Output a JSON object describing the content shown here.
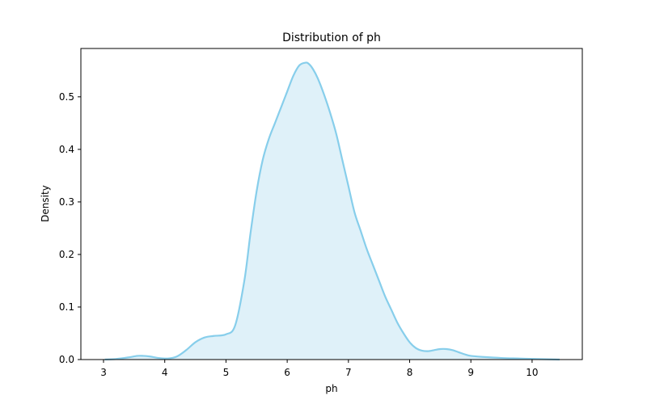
{
  "chart_data": {
    "type": "area",
    "title": "Distribution of ph",
    "xlabel": "ph",
    "ylabel": "Density",
    "xlim": [
      2.63,
      10.82
    ],
    "ylim": [
      0,
      0.592
    ],
    "x_ticks": [
      3,
      4,
      5,
      6,
      7,
      8,
      9,
      10
    ],
    "x_tick_labels": [
      "3",
      "4",
      "5",
      "6",
      "7",
      "8",
      "9",
      "10"
    ],
    "y_ticks": [
      0.0,
      0.1,
      0.2,
      0.3,
      0.4,
      0.5
    ],
    "y_tick_labels": [
      "0.0",
      "0.1",
      "0.2",
      "0.3",
      "0.4",
      "0.5"
    ],
    "grid": false,
    "legend": "none",
    "series": [
      {
        "line_color": "#87ceeb",
        "fill_color": "#dff1f9",
        "x": [
          3.02,
          3.2,
          3.4,
          3.55,
          3.65,
          3.75,
          3.9,
          4.05,
          4.2,
          4.35,
          4.5,
          4.65,
          4.8,
          5.0,
          5.15,
          5.3,
          5.4,
          5.5,
          5.6,
          5.7,
          5.8,
          5.9,
          6.0,
          6.1,
          6.2,
          6.3,
          6.35,
          6.42,
          6.5,
          6.6,
          6.7,
          6.8,
          6.9,
          7.0,
          7.1,
          7.2,
          7.3,
          7.4,
          7.5,
          7.6,
          7.7,
          7.8,
          7.9,
          8.0,
          8.1,
          8.2,
          8.3,
          8.4,
          8.5,
          8.6,
          8.7,
          8.8,
          8.9,
          9.0,
          9.2,
          9.5,
          9.8,
          10.1,
          10.45
        ],
        "y": [
          0.0,
          0.001,
          0.004,
          0.007,
          0.007,
          0.006,
          0.003,
          0.002,
          0.006,
          0.018,
          0.033,
          0.042,
          0.045,
          0.048,
          0.065,
          0.15,
          0.24,
          0.32,
          0.38,
          0.42,
          0.45,
          0.48,
          0.51,
          0.54,
          0.56,
          0.565,
          0.563,
          0.553,
          0.535,
          0.505,
          0.47,
          0.43,
          0.38,
          0.33,
          0.28,
          0.245,
          0.21,
          0.18,
          0.15,
          0.12,
          0.095,
          0.07,
          0.05,
          0.033,
          0.022,
          0.017,
          0.016,
          0.018,
          0.02,
          0.02,
          0.018,
          0.014,
          0.01,
          0.007,
          0.005,
          0.003,
          0.002,
          0.001,
          0.0
        ]
      }
    ]
  }
}
